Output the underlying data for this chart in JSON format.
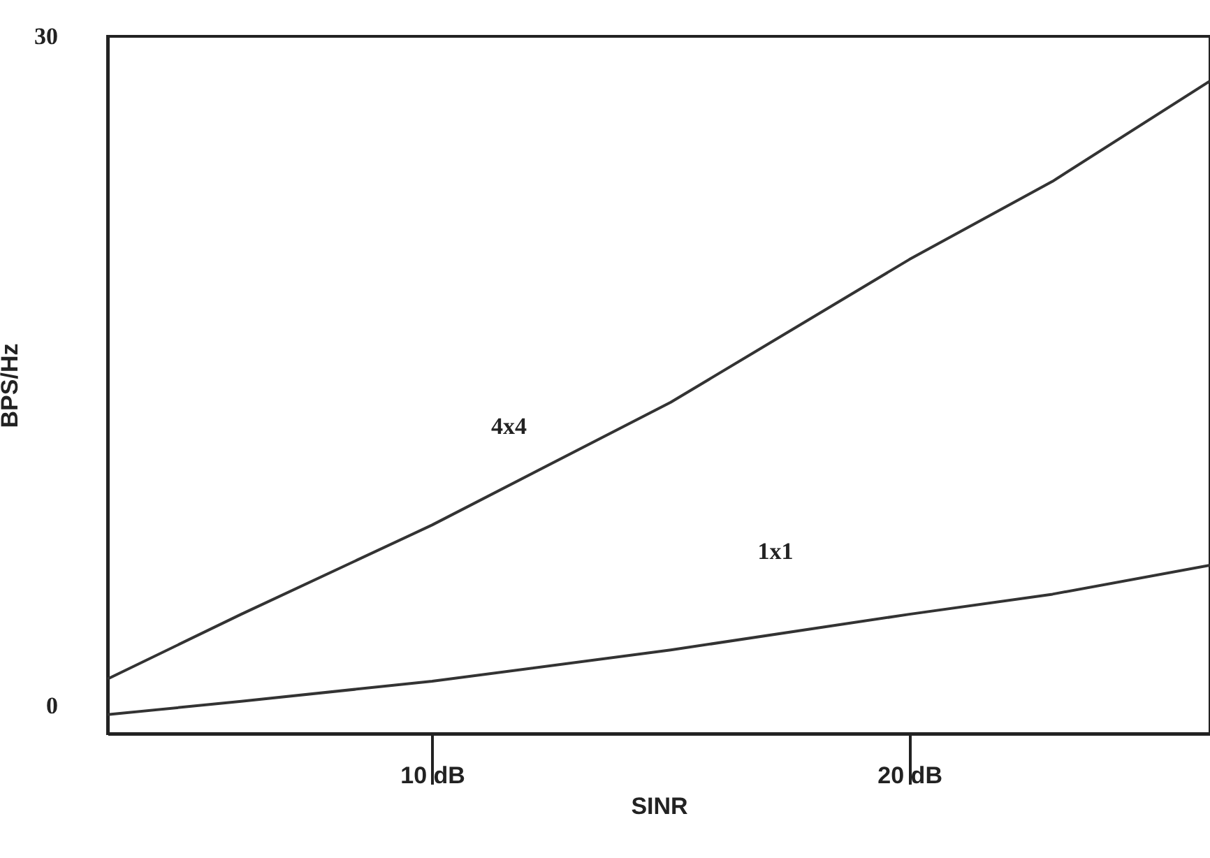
{
  "chart_data": {
    "type": "line",
    "xlabel": "SINR",
    "ylabel": "BPS/Hz",
    "x": [
      3.2,
      6,
      10,
      15,
      20,
      23,
      26.3
    ],
    "series": [
      {
        "name": "4x4",
        "color": "#333333",
        "values": [
          1.2,
          4.1,
          8.1,
          13.6,
          20.0,
          23.5,
          28.0
        ]
      },
      {
        "name": "1x1",
        "color": "#333333",
        "values": [
          -0.4,
          0.2,
          1.1,
          2.5,
          4.1,
          5.0,
          6.3
        ]
      }
    ],
    "xlim": [
      3.2,
      26.3
    ],
    "xticks": [
      {
        "value": 10,
        "label": "10 dB"
      },
      {
        "value": 20,
        "label": "20 dB"
      }
    ],
    "ylim": [
      -1.25,
      30
    ],
    "yticks": [
      0,
      30
    ],
    "grid": false,
    "legend": false,
    "marker": "none",
    "line_style": "solid"
  }
}
